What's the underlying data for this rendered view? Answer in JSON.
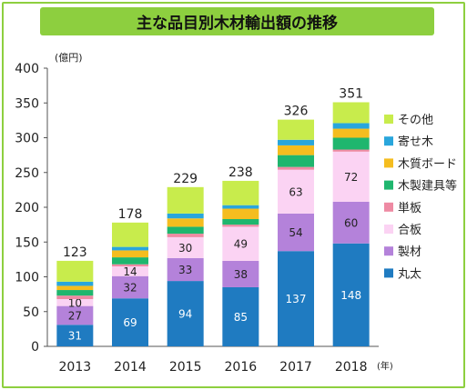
{
  "title": "主な品目別木材輸出額の推移",
  "chart_data": {
    "type": "bar",
    "stacked": true,
    "y_unit_label": "(億円)",
    "x_unit_label": "(年)",
    "ylim": [
      0,
      400
    ],
    "yticks": [
      0,
      50,
      100,
      150,
      200,
      250,
      300,
      350,
      400
    ],
    "categories": [
      "2013",
      "2014",
      "2015",
      "2016",
      "2017",
      "2018"
    ],
    "totals": [
      123,
      178,
      229,
      238,
      326,
      351
    ],
    "series": [
      {
        "name": "丸太",
        "color": "#1f7bc1",
        "label_color": "#ffffff",
        "values": [
          31,
          69,
          94,
          85,
          137,
          148
        ],
        "show_labels": true
      },
      {
        "name": "製材",
        "color": "#b482da",
        "label_color": "#222222",
        "values": [
          27,
          32,
          33,
          38,
          54,
          60
        ],
        "show_labels": true
      },
      {
        "name": "合板",
        "color": "#fbd3f3",
        "label_color": "#222222",
        "values": [
          10,
          14,
          30,
          49,
          63,
          72
        ],
        "show_labels": true
      },
      {
        "name": "単板",
        "color": "#ee8aa3",
        "label_color": "#222222",
        "values": [
          5,
          3,
          5,
          3,
          4,
          3
        ],
        "show_labels": false
      },
      {
        "name": "木製建具等",
        "color": "#1fb66e",
        "label_color": "#222222",
        "values": [
          8,
          10,
          10,
          8,
          17,
          17
        ],
        "show_labels": false
      },
      {
        "name": "木質ボード",
        "color": "#f5bd1f",
        "label_color": "#222222",
        "values": [
          6,
          10,
          12,
          15,
          14,
          13
        ],
        "show_labels": false
      },
      {
        "name": "寄せ木",
        "color": "#29a6dc",
        "label_color": "#222222",
        "values": [
          6,
          5,
          7,
          5,
          8,
          8
        ],
        "show_labels": false
      },
      {
        "name": "その他",
        "color": "#c8ec4c",
        "label_color": "#222222",
        "values": [
          30,
          35,
          38,
          35,
          29,
          30
        ],
        "show_labels": false
      }
    ],
    "legend_order": [
      "その他",
      "寄せ木",
      "木質ボード",
      "木製建具等",
      "単板",
      "合板",
      "製材",
      "丸太"
    ],
    "legend_position": "right",
    "grid": false
  }
}
